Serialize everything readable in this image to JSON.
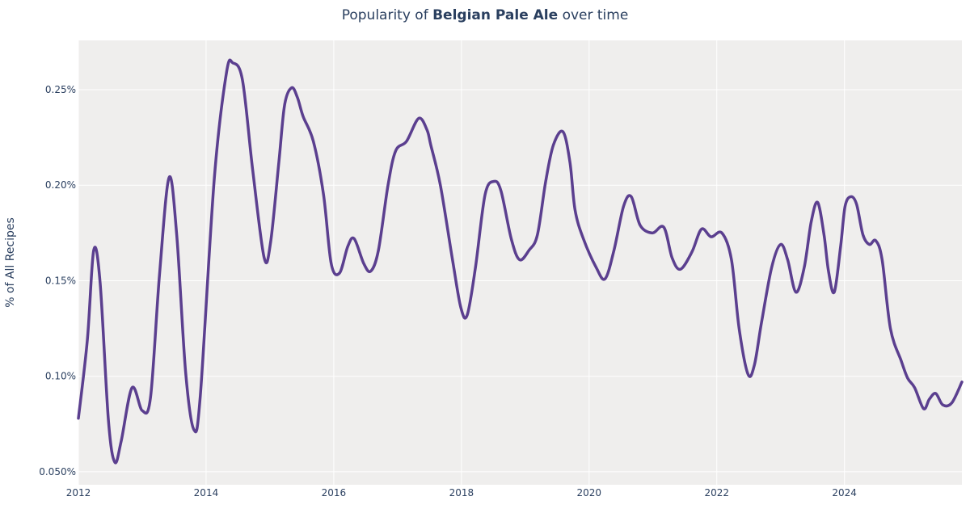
{
  "title": {
    "prefix": "Popularity of ",
    "bold": "Belgian Pale Ale",
    "suffix": " over time"
  },
  "chart_data": {
    "type": "line",
    "title": "Popularity of Belgian Pale Ale over time",
    "xlabel": "",
    "ylabel": "% of All Recipes",
    "xlim": [
      2012.0,
      2025.84
    ],
    "ylim": [
      0.0432,
      0.2758
    ],
    "grid": true,
    "x_ticks": [
      2012,
      2014,
      2016,
      2018,
      2020,
      2022,
      2024
    ],
    "x_tick_labels": [
      "2012",
      "2014",
      "2016",
      "2018",
      "2020",
      "2022",
      "2024"
    ],
    "y_ticks": [
      0.05,
      0.1,
      0.15,
      0.2,
      0.25
    ],
    "y_tick_labels": [
      "0.050%",
      "0.10%",
      "0.15%",
      "0.20%",
      "0.25%"
    ],
    "colors": {
      "line": "#5b3f8f",
      "plot_bg": "#efeeed",
      "grid": "#ffffff"
    },
    "series": [
      {
        "x": [
          2012.0,
          2012.14,
          2012.24,
          2012.34,
          2012.47,
          2012.57,
          2012.67,
          2012.84,
          2013.0,
          2013.13,
          2013.27,
          2013.42,
          2013.54,
          2013.68,
          2013.81,
          2013.91,
          2014.13,
          2014.32,
          2014.42,
          2014.57,
          2014.73,
          2014.91,
          2015.01,
          2015.14,
          2015.23,
          2015.34,
          2015.43,
          2015.52,
          2015.68,
          2015.84,
          2015.96,
          2016.09,
          2016.22,
          2016.32,
          2016.47,
          2016.58,
          2016.7,
          2016.85,
          2016.97,
          2017.14,
          2017.33,
          2017.46,
          2017.52,
          2017.67,
          2017.86,
          2017.99,
          2018.09,
          2018.22,
          2018.37,
          2018.51,
          2018.62,
          2018.78,
          2018.91,
          2019.06,
          2019.19,
          2019.32,
          2019.44,
          2019.59,
          2019.7,
          2019.78,
          2019.91,
          2020.11,
          2020.25,
          2020.39,
          2020.54,
          2020.66,
          2020.8,
          2020.99,
          2021.17,
          2021.3,
          2021.43,
          2021.61,
          2021.76,
          2021.91,
          2022.08,
          2022.23,
          2022.35,
          2022.49,
          2022.59,
          2022.7,
          2022.86,
          2023.0,
          2023.11,
          2023.24,
          2023.37,
          2023.48,
          2023.58,
          2023.68,
          2023.75,
          2023.84,
          2023.94,
          2024.01,
          2024.1,
          2024.19,
          2024.29,
          2024.39,
          2024.49,
          2024.59,
          2024.72,
          2024.89,
          2024.99,
          2025.1,
          2025.24,
          2025.33,
          2025.43,
          2025.54,
          2025.68,
          2025.84
        ],
        "y": [
          0.078,
          0.119,
          0.166,
          0.149,
          0.077,
          0.055,
          0.066,
          0.094,
          0.082,
          0.089,
          0.153,
          0.204,
          0.174,
          0.102,
          0.072,
          0.09,
          0.204,
          0.259,
          0.264,
          0.255,
          0.208,
          0.162,
          0.17,
          0.212,
          0.242,
          0.251,
          0.246,
          0.236,
          0.223,
          0.195,
          0.159,
          0.154,
          0.168,
          0.172,
          0.159,
          0.155,
          0.166,
          0.2,
          0.218,
          0.223,
          0.235,
          0.229,
          0.221,
          0.2,
          0.161,
          0.136,
          0.132,
          0.157,
          0.195,
          0.202,
          0.197,
          0.172,
          0.161,
          0.166,
          0.174,
          0.202,
          0.221,
          0.228,
          0.212,
          0.187,
          0.172,
          0.157,
          0.151,
          0.166,
          0.189,
          0.194,
          0.179,
          0.175,
          0.178,
          0.162,
          0.156,
          0.165,
          0.177,
          0.173,
          0.175,
          0.161,
          0.125,
          0.101,
          0.106,
          0.128,
          0.157,
          0.169,
          0.161,
          0.144,
          0.157,
          0.181,
          0.191,
          0.174,
          0.155,
          0.144,
          0.168,
          0.189,
          0.194,
          0.19,
          0.174,
          0.169,
          0.171,
          0.161,
          0.125,
          0.108,
          0.099,
          0.094,
          0.083,
          0.088,
          0.091,
          0.085,
          0.086,
          0.097
        ]
      }
    ]
  }
}
